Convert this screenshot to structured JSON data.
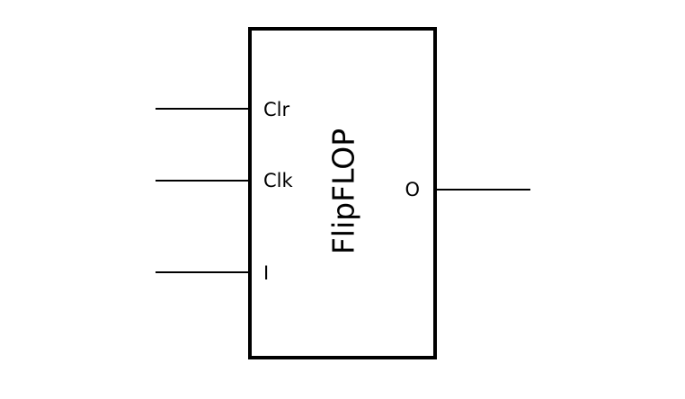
{
  "block": {
    "title": "FlipFLOP"
  },
  "inputs": [
    {
      "label": "Clr"
    },
    {
      "label": "Clk"
    },
    {
      "label": "I"
    }
  ],
  "outputs": [
    {
      "label": "O"
    }
  ]
}
